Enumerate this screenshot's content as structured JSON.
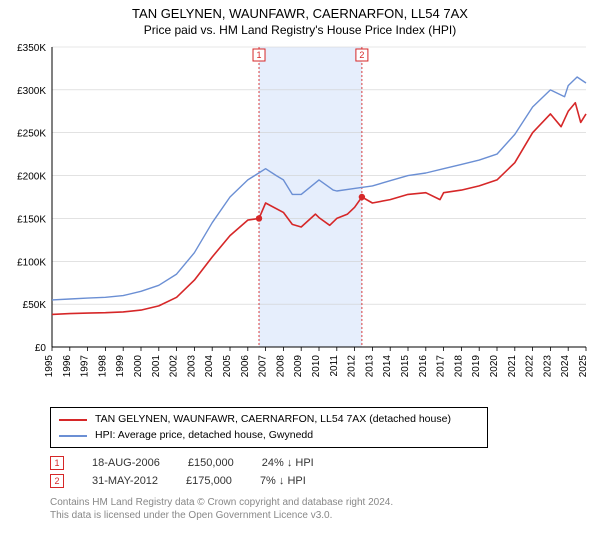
{
  "title_line1": "TAN GELYNEN, WAUNFAWR, CAERNARFON, LL54 7AX",
  "title_line2": "Price paid vs. HM Land Registry's House Price Index (HPI)",
  "chart": {
    "type": "line",
    "ylim": [
      0,
      350000
    ],
    "yticks": [
      0,
      50000,
      100000,
      150000,
      200000,
      250000,
      300000,
      350000
    ],
    "ytick_labels": [
      "£0",
      "£50K",
      "£100K",
      "£150K",
      "£200K",
      "£250K",
      "£300K",
      "£350K"
    ],
    "xlim": [
      1995,
      2025
    ],
    "xticks": [
      1995,
      1996,
      1997,
      1998,
      1999,
      2000,
      2001,
      2002,
      2003,
      2004,
      2005,
      2006,
      2007,
      2008,
      2009,
      2010,
      2011,
      2012,
      2013,
      2014,
      2015,
      2016,
      2017,
      2018,
      2019,
      2020,
      2021,
      2022,
      2023,
      2024,
      2025
    ],
    "background_color": "#ffffff",
    "grid_color": "#d0d0d0",
    "axis_color": "#000000",
    "shaded_band": {
      "x_from": 2006.63,
      "x_to": 2012.41,
      "color": "#e6eefc"
    },
    "markers": [
      {
        "x": 2006.63,
        "y": 150000,
        "label": "1",
        "color": "#d62728"
      },
      {
        "x": 2012.41,
        "y": 175000,
        "label": "2",
        "color": "#d62728"
      }
    ],
    "series": [
      {
        "name": "subject",
        "label": "TAN GELYNEN, WAUNFAWR, CAERNARFON, LL54 7AX (detached house)",
        "color": "#d62728",
        "width": 1.6,
        "data": [
          [
            1995,
            38000
          ],
          [
            1996,
            39000
          ],
          [
            1997,
            39500
          ],
          [
            1998,
            40000
          ],
          [
            1999,
            41000
          ],
          [
            2000,
            43000
          ],
          [
            2001,
            48000
          ],
          [
            2002,
            58000
          ],
          [
            2003,
            78000
          ],
          [
            2004,
            105000
          ],
          [
            2005,
            130000
          ],
          [
            2006,
            148000
          ],
          [
            2006.63,
            150000
          ],
          [
            2007,
            168000
          ],
          [
            2008,
            157000
          ],
          [
            2008.5,
            143000
          ],
          [
            2009,
            140000
          ],
          [
            2009.8,
            155000
          ],
          [
            2010,
            151000
          ],
          [
            2010.6,
            142000
          ],
          [
            2011,
            150000
          ],
          [
            2011.6,
            155000
          ],
          [
            2012,
            163000
          ],
          [
            2012.41,
            175000
          ],
          [
            2013,
            168000
          ],
          [
            2014,
            172000
          ],
          [
            2015,
            178000
          ],
          [
            2016,
            180000
          ],
          [
            2016.8,
            172000
          ],
          [
            2017,
            180000
          ],
          [
            2018,
            183000
          ],
          [
            2019,
            188000
          ],
          [
            2020,
            195000
          ],
          [
            2021,
            215000
          ],
          [
            2022,
            250000
          ],
          [
            2023,
            272000
          ],
          [
            2023.6,
            257000
          ],
          [
            2024,
            275000
          ],
          [
            2024.4,
            285000
          ],
          [
            2024.7,
            262000
          ],
          [
            2025,
            272000
          ]
        ]
      },
      {
        "name": "hpi",
        "label": "HPI: Average price, detached house, Gwynedd",
        "color": "#6b8fd4",
        "width": 1.4,
        "data": [
          [
            1995,
            55000
          ],
          [
            1996,
            56000
          ],
          [
            1997,
            57000
          ],
          [
            1998,
            58000
          ],
          [
            1999,
            60000
          ],
          [
            2000,
            65000
          ],
          [
            2001,
            72000
          ],
          [
            2002,
            85000
          ],
          [
            2003,
            110000
          ],
          [
            2004,
            145000
          ],
          [
            2005,
            175000
          ],
          [
            2006,
            195000
          ],
          [
            2007,
            208000
          ],
          [
            2007.6,
            200000
          ],
          [
            2008,
            195000
          ],
          [
            2008.5,
            178000
          ],
          [
            2009,
            178000
          ],
          [
            2010,
            195000
          ],
          [
            2010.8,
            183000
          ],
          [
            2011,
            182000
          ],
          [
            2012,
            185000
          ],
          [
            2013,
            188000
          ],
          [
            2014,
            194000
          ],
          [
            2015,
            200000
          ],
          [
            2016,
            203000
          ],
          [
            2017,
            208000
          ],
          [
            2018,
            213000
          ],
          [
            2019,
            218000
          ],
          [
            2020,
            225000
          ],
          [
            2021,
            248000
          ],
          [
            2022,
            280000
          ],
          [
            2023,
            300000
          ],
          [
            2023.8,
            292000
          ],
          [
            2024,
            305000
          ],
          [
            2024.5,
            315000
          ],
          [
            2025,
            308000
          ]
        ]
      }
    ]
  },
  "legend": {
    "s0": "TAN GELYNEN, WAUNFAWR, CAERNARFON, LL54 7AX (detached house)",
    "s1": "HPI: Average price, detached house, Gwynedd"
  },
  "annotations": [
    {
      "marker": "1",
      "date": "18-AUG-2006",
      "price": "£150,000",
      "delta": "24% ↓ HPI",
      "color": "#d62728"
    },
    {
      "marker": "2",
      "date": "31-MAY-2012",
      "price": "£175,000",
      "delta": "7% ↓ HPI",
      "color": "#d62728"
    }
  ],
  "footnote_line1": "Contains HM Land Registry data © Crown copyright and database right 2024.",
  "footnote_line2": "This data is licensed under the Open Government Licence v3.0."
}
